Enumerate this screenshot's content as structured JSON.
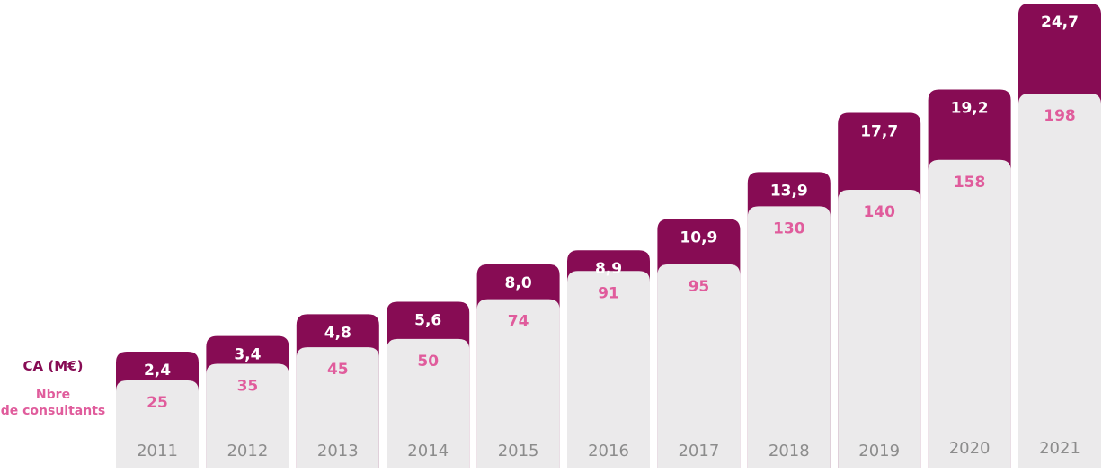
{
  "legend": {
    "ca_label": "CA (M€)",
    "consultants_label_line1": "Nbre",
    "consultants_label_line2": "de consultants"
  },
  "colors": {
    "ca": "#870c54",
    "consultants_text": "#e05c9c",
    "consultants_bar": "#ebeaeb",
    "year_text": "#8c8c8c",
    "ca_text": "#ffffff"
  },
  "chart_data": {
    "type": "bar",
    "categories": [
      "2011",
      "2012",
      "2013",
      "2014",
      "2015",
      "2016",
      "2017",
      "2018",
      "2019",
      "2020",
      "2021"
    ],
    "series": [
      {
        "name": "CA (M€)",
        "values": [
          2.4,
          3.4,
          4.8,
          5.6,
          8.0,
          8.9,
          10.9,
          13.9,
          17.7,
          19.2,
          24.7
        ],
        "labels": [
          "2,4",
          "3,4",
          "4,8",
          "5,6",
          "8,0",
          "8,9",
          "10,9",
          "13,9",
          "17,7",
          "19,2",
          "24,7"
        ]
      },
      {
        "name": "Nbre de consultants",
        "values": [
          25,
          35,
          45,
          50,
          74,
          91,
          95,
          130,
          140,
          158,
          198
        ],
        "labels": [
          "25",
          "35",
          "45",
          "50",
          "74",
          "91",
          "95",
          "130",
          "140",
          "158",
          "198"
        ]
      }
    ],
    "grid": false,
    "legend_position": "left"
  }
}
